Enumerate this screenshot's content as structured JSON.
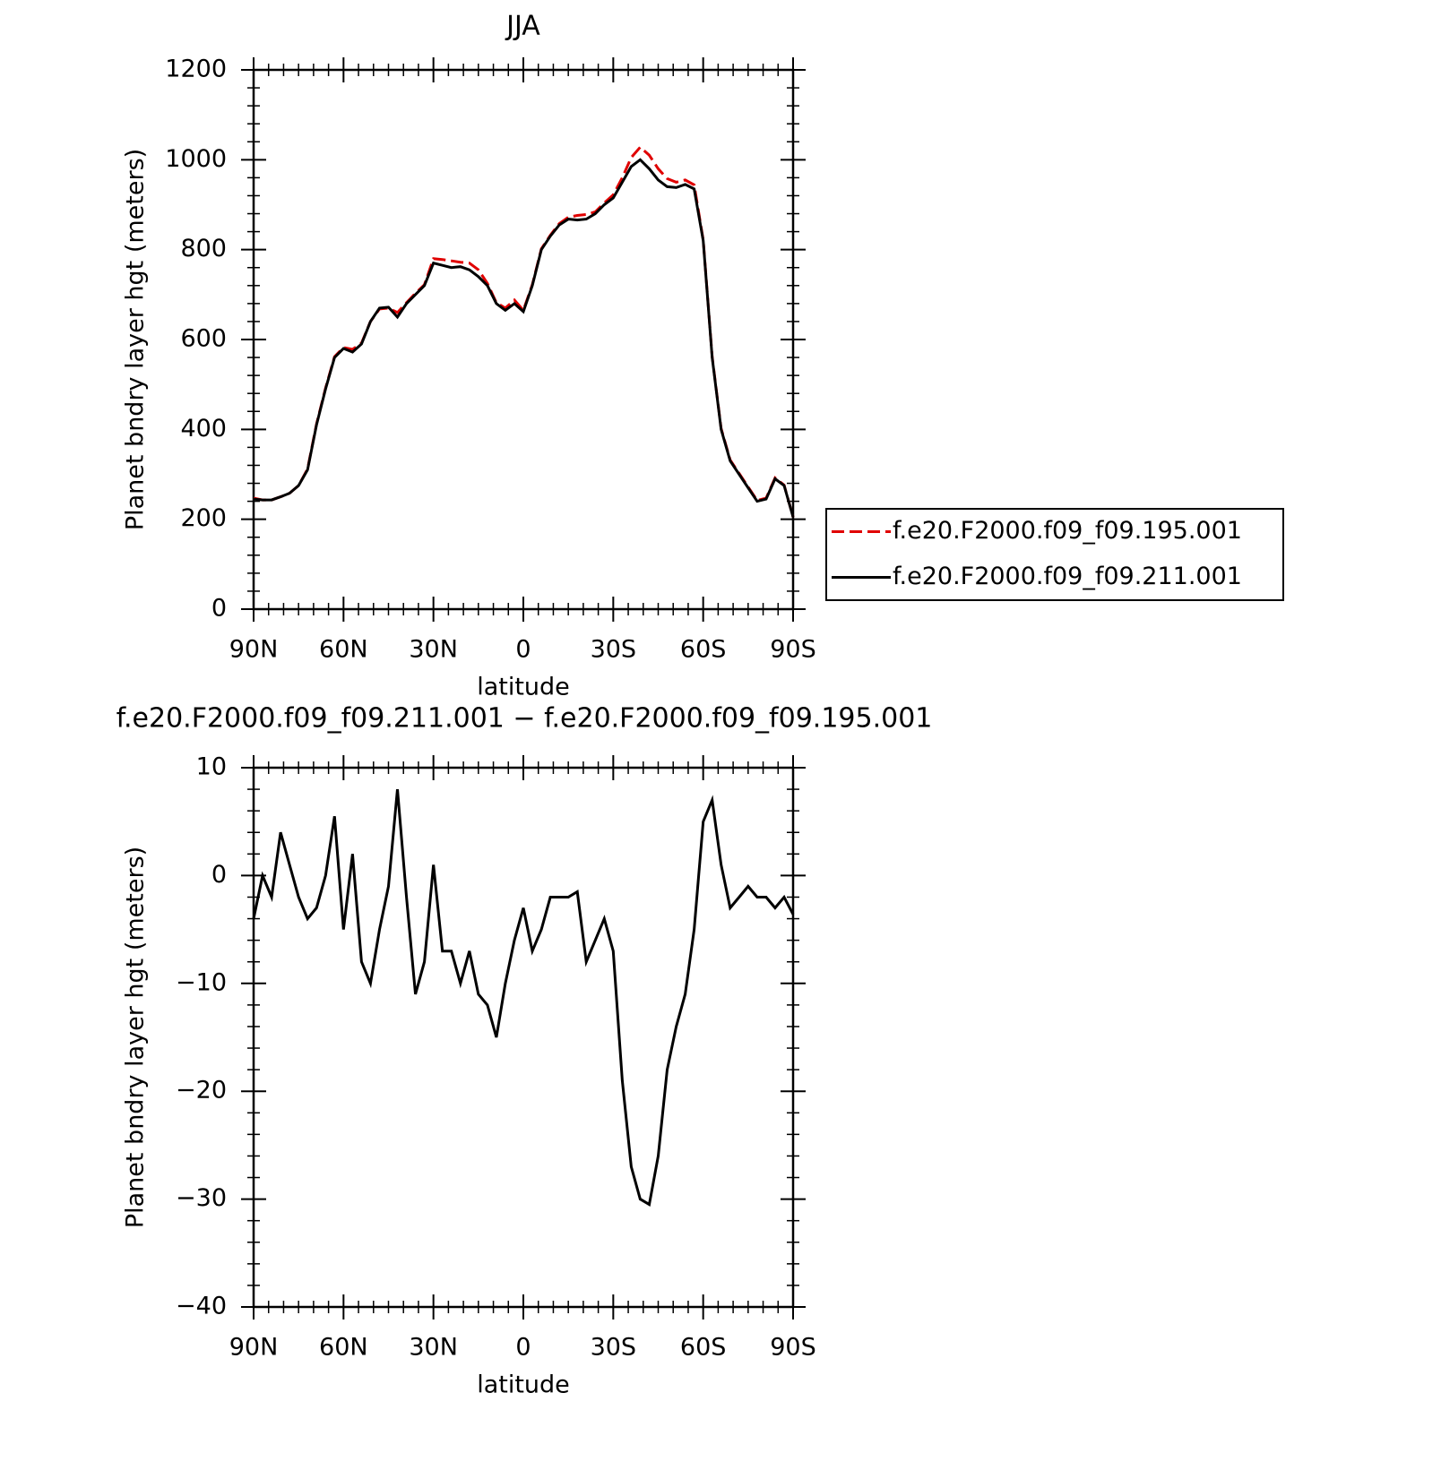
{
  "chart_data": [
    {
      "type": "line",
      "title": "JJA",
      "xlabel": "latitude",
      "ylabel": "Planet bndry layer hgt (meters)",
      "xlim": [
        90,
        -90
      ],
      "ylim": [
        0,
        1200
      ],
      "xticks": [
        {
          "value": 90,
          "label": "90N"
        },
        {
          "value": 60,
          "label": "60N"
        },
        {
          "value": 30,
          "label": "30N"
        },
        0,
        {
          "value": -30,
          "label": "30S"
        },
        {
          "value": -60,
          "label": "60S"
        },
        {
          "value": -90,
          "label": "90S"
        }
      ],
      "yticks": [
        0,
        200,
        400,
        600,
        800,
        1000,
        1200
      ],
      "legend": "right",
      "x": [
        90,
        87,
        84,
        81,
        78,
        75,
        72,
        69,
        66,
        63,
        60,
        57,
        54,
        51,
        48,
        45,
        42,
        39,
        36,
        33,
        30,
        27,
        24,
        21,
        18,
        15,
        12,
        9,
        6,
        3,
        0,
        -3,
        -6,
        -9,
        -12,
        -15,
        -18,
        -21,
        -24,
        -27,
        -30,
        -33,
        -36,
        -39,
        -42,
        -45,
        -48,
        -51,
        -54,
        -57,
        -60,
        -63,
        -66,
        -69,
        -72,
        -75,
        -78,
        -81,
        -84,
        -87,
        -90
      ],
      "series": [
        {
          "name": "f.e20.F2000.f09_f09.195.001",
          "color": "#e00000",
          "dashed": true,
          "values": [
            247,
            243,
            243,
            250,
            258,
            275,
            312,
            412,
            492,
            562,
            582,
            578,
            592,
            640,
            668,
            670,
            660,
            682,
            703,
            722,
            780,
            778,
            775,
            772,
            770,
            755,
            725,
            682,
            670,
            688,
            665,
            722,
            802,
            832,
            858,
            872,
            876,
            878,
            884,
            904,
            922,
            960,
            1005,
            1028,
            1010,
            980,
            958,
            950,
            955,
            944,
            822,
            562,
            402,
            332,
            302,
            272,
            242,
            247,
            292,
            276,
            205
          ]
        },
        {
          "name": "f.e20.F2000.f09_f09.211.001",
          "color": "#000000",
          "dashed": false,
          "values": [
            245,
            243,
            243,
            250,
            258,
            275,
            310,
            410,
            490,
            560,
            580,
            572,
            590,
            640,
            670,
            672,
            650,
            680,
            700,
            720,
            770,
            765,
            760,
            762,
            755,
            740,
            720,
            680,
            665,
            680,
            662,
            720,
            800,
            830,
            855,
            868,
            866,
            868,
            880,
            900,
            915,
            950,
            985,
            1000,
            980,
            955,
            940,
            938,
            945,
            935,
            820,
            560,
            400,
            330,
            300,
            270,
            240,
            245,
            290,
            275,
            205
          ]
        }
      ]
    },
    {
      "type": "line",
      "title": "f.e20.F2000.f09_f09.211.001 − f.e20.F2000.f09_f09.195.001",
      "xlabel": "latitude",
      "ylabel": "Planet bndry layer hgt (meters)",
      "xlim": [
        90,
        -90
      ],
      "ylim": [
        -40,
        10
      ],
      "xticks": [
        {
          "value": 90,
          "label": "90N"
        },
        {
          "value": 60,
          "label": "60N"
        },
        {
          "value": 30,
          "label": "30N"
        },
        0,
        {
          "value": -30,
          "label": "30S"
        },
        {
          "value": -60,
          "label": "60S"
        },
        {
          "value": -90,
          "label": "90S"
        }
      ],
      "yticks": [
        {
          "value": -40,
          "label": "−40"
        },
        {
          "value": -30,
          "label": "−30"
        },
        {
          "value": -20,
          "label": "−20"
        },
        {
          "value": -10,
          "label": "−10"
        },
        0,
        10
      ],
      "x": [
        90,
        87,
        84,
        81,
        78,
        75,
        72,
        69,
        66,
        63,
        60,
        57,
        54,
        51,
        48,
        45,
        42,
        39,
        36,
        33,
        30,
        27,
        24,
        21,
        18,
        15,
        12,
        9,
        6,
        3,
        0,
        -3,
        -6,
        -9,
        -12,
        -15,
        -18,
        -21,
        -24,
        -27,
        -30,
        -33,
        -36,
        -39,
        -42,
        -45,
        -48,
        -51,
        -54,
        -57,
        -60,
        -63,
        -66,
        -69,
        -72,
        -75,
        -78,
        -81,
        -84,
        -87,
        -90
      ],
      "series": [
        {
          "color": "#000000",
          "dashed": false,
          "values": [
            -4,
            0,
            -2,
            4,
            1,
            -2,
            -4,
            -3,
            0,
            5.5,
            -5,
            2,
            -8,
            -10,
            -5,
            -1,
            8,
            -2,
            -11,
            -8,
            1,
            -7,
            -7,
            -10,
            -7,
            -11,
            -12,
            -15,
            -10,
            -6,
            -3,
            -7,
            -5,
            -2,
            -2,
            -2,
            -1.5,
            -8,
            -6,
            -4,
            -7,
            -19,
            -27,
            -30,
            -30.5,
            -26,
            -18,
            -14,
            -11,
            -5,
            5,
            7,
            1,
            -3,
            -2,
            -1,
            -2,
            -2,
            -3,
            -2,
            -3.6
          ]
        }
      ]
    }
  ]
}
